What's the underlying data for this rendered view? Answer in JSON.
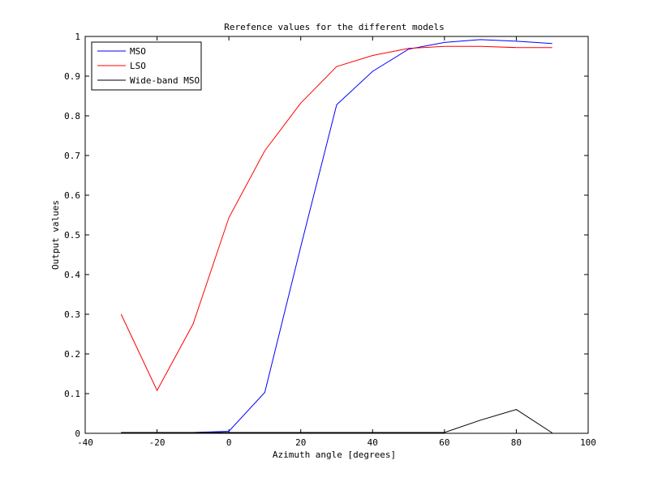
{
  "chart_data": {
    "type": "line",
    "title": "Rerefence values for the different models",
    "xlabel": "Azimuth angle [degrees]",
    "ylabel": "Output values",
    "xlim": [
      -40,
      100
    ],
    "ylim": [
      0,
      1
    ],
    "xticks": [
      "-40",
      "-20",
      "0",
      "20",
      "40",
      "60",
      "80",
      "100"
    ],
    "yticks": [
      "0",
      "0.1",
      "0.2",
      "0.3",
      "0.4",
      "0.5",
      "0.6",
      "0.7",
      "0.8",
      "0.9",
      "1"
    ],
    "grid": false,
    "legend_position": "top-left",
    "x": [
      -30,
      -20,
      -10,
      0,
      10,
      20,
      30,
      40,
      50,
      60,
      70,
      80,
      90
    ],
    "series": [
      {
        "name": "MSO",
        "color": "#0000ff",
        "values": [
          0.002,
          0.002,
          0.002,
          0.005,
          0.103,
          0.47,
          0.828,
          0.912,
          0.968,
          0.985,
          0.992,
          0.988,
          0.982
        ]
      },
      {
        "name": "LSO",
        "color": "#ff0000",
        "values": [
          0.3,
          0.108,
          0.275,
          0.543,
          0.712,
          0.832,
          0.924,
          0.952,
          0.97,
          0.975,
          0.975,
          0.972,
          0.972
        ]
      },
      {
        "name": "Wide-band MSO",
        "color": "#000000",
        "values": [
          0.002,
          0.002,
          0.002,
          0.002,
          0.002,
          0.002,
          0.002,
          0.002,
          0.002,
          0.002,
          0.033,
          0.06,
          0.001
        ]
      }
    ]
  }
}
